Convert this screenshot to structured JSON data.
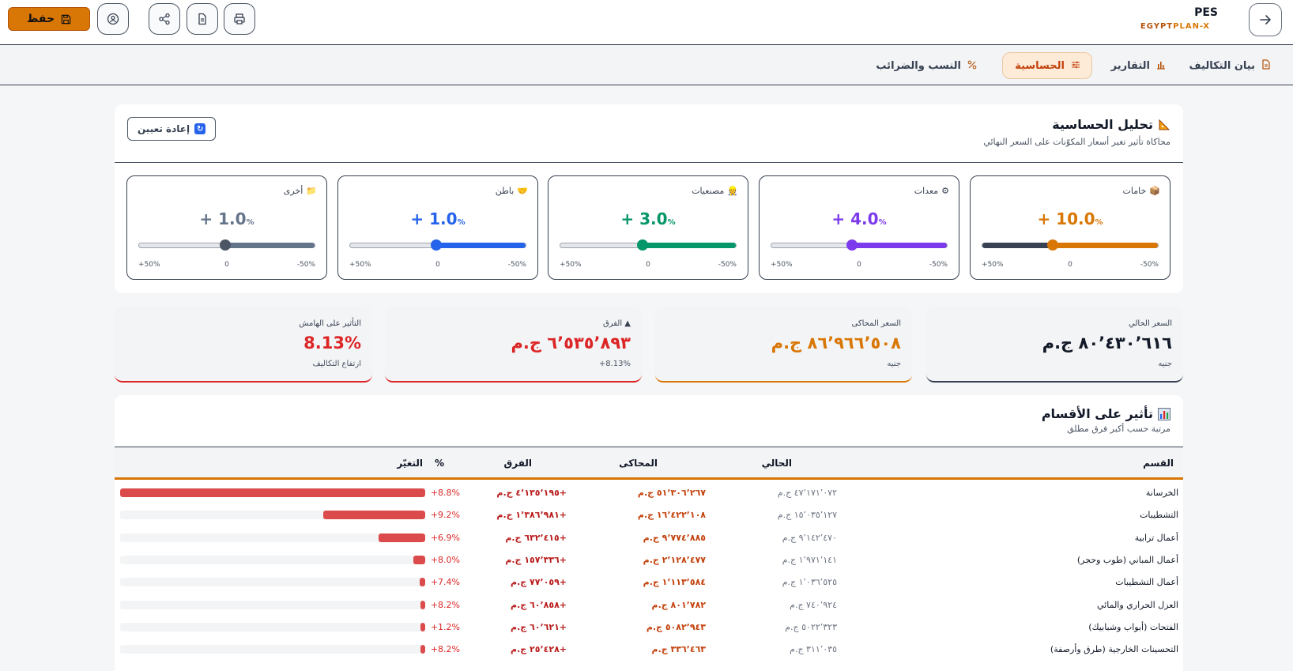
{
  "header": {
    "app_title": "PES",
    "country": "EGYPT",
    "plan": "PLAN-X",
    "save_label": "حفظ"
  },
  "tabs": [
    {
      "label": "بيان التكاليف",
      "icon": "document-icon"
    },
    {
      "label": "التقارير",
      "icon": "bar-chart-icon"
    },
    {
      "label": "الحساسية",
      "icon": "sliders-icon"
    },
    {
      "label": "النسب والضرائب",
      "icon": "percent-icon"
    }
  ],
  "sensitivity": {
    "title": "تحليل الحساسية",
    "subtitle": "محاكاة تأثير تغير أسعار المكوّنات على السعر النهائي",
    "reset_label": "إعادة تعيين",
    "tick_min": "-50%",
    "tick_mid": "0",
    "tick_max": "+50%",
    "sliders": [
      {
        "label": "خامات",
        "value_text": "+ 10.0",
        "value": 10.0,
        "color": "#d97706"
      },
      {
        "label": "معدات",
        "value_text": "+ 4.0",
        "value": 4.0,
        "color": "#7c3aed"
      },
      {
        "label": "مصنعيات",
        "value_text": "+ 3.0",
        "value": 3.0,
        "color": "#059669"
      },
      {
        "label": "باطن",
        "value_text": "+ 1.0",
        "value": 1.0,
        "color": "#2563eb"
      },
      {
        "label": "أخرى",
        "value_text": "+ 1.0",
        "value": 1.0,
        "color": "#64748b"
      }
    ]
  },
  "summary": {
    "current": {
      "label": "السعر الحالي",
      "value": "٨٠٬٤٣٠٬٦١٦ ج.م",
      "note": "جنيه"
    },
    "simulated": {
      "label": "السعر المحاكى",
      "value": "٨٦٬٩٦٦٬٥٠٨ ج.م",
      "note": "جنيه"
    },
    "difference": {
      "label": "▲ الفرق",
      "value": "٦٬٥٣٥٬٨٩٣ ج.م",
      "note": "+8.13%"
    },
    "margin": {
      "label": "التأثير على الهامش",
      "value": "8.13%",
      "note": "ارتفاع التكاليف"
    }
  },
  "sections": {
    "title": "تأثير على الأقسام",
    "subtitle": "مرتبة حسب أكبر فرق مطلق",
    "headers": {
      "name": "القسم",
      "current": "الحالي",
      "simulated": "المحاكى",
      "diff": "الفرق",
      "pct": "%",
      "change": "التغيّر"
    },
    "rows": [
      {
        "name": "الخرسانة",
        "current": "٤٧٬١٧١٬٠٧٢ ج.م",
        "simulated": "٥١٬٣٠٦٬٢٦٧ ج.م",
        "diff": "+٤٬١٣٥٬١٩٥ ج.م",
        "pct": "+8.8%",
        "share": 1.0
      },
      {
        "name": "التشطيبات",
        "current": "١٥٬٠٣٥٬١٢٧ ج.م",
        "simulated": "١٦٬٤٢٢٬١٠٨ ج.م",
        "diff": "+١٬٣٨٦٬٩٨١ ج.م",
        "pct": "+9.2%",
        "share": 0.335
      },
      {
        "name": "أعمال ترابية",
        "current": "٩٬١٤٢٬٤٧٠ ج.م",
        "simulated": "٩٬٧٧٤٬٨٨٥ ج.م",
        "diff": "+٦٣٢٬٤١٥ ج.م",
        "pct": "+6.9%",
        "share": 0.153
      },
      {
        "name": "أعمال المباني (طوب وحجر)",
        "current": "١٬٩٧١٬١٤١ ج.م",
        "simulated": "٢٬١٢٨٬٤٧٧ ج.م",
        "diff": "+١٥٧٬٣٣٦ ج.م",
        "pct": "+8.0%",
        "share": 0.038
      },
      {
        "name": "أعمال التشطيبات",
        "current": "١٬٠٣٦٬٥٢٥ ج.م",
        "simulated": "١٬١١٣٬٥٨٤ ج.م",
        "diff": "+٧٧٬٠٥٩ ج.م",
        "pct": "+7.4%",
        "share": 0.019
      },
      {
        "name": "العزل الحراري والمائي",
        "current": "٧٤٠٬٩٢٤ ج.م",
        "simulated": "٨٠١٬٧٨٢ ج.م",
        "diff": "+٦٠٬٨٥٨ ج.م",
        "pct": "+8.2%",
        "share": 0.015
      },
      {
        "name": "الفتحات (أبواب وشبابيك)",
        "current": "٥٠٢٢٬٣٢٣ ج.م",
        "simulated": "٥٠٨٢٬٩٤٣ ج.م",
        "diff": "+٦٠٬٦٢١ ج.م",
        "pct": "+1.2%",
        "share": 0.015
      },
      {
        "name": "التحسينات الخارجية (طرق وأرصفة)",
        "current": "٣١١٬٠٣٥ ج.م",
        "simulated": "٣٣٦٬٤٦٣ ج.م",
        "diff": "+٢٥٬٤٢٨ ج.م",
        "pct": "+8.2%",
        "share": 0.006
      }
    ]
  }
}
